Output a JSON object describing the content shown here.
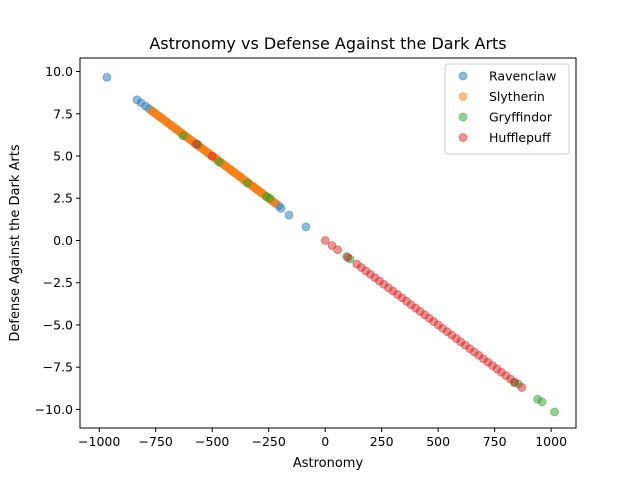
{
  "chart_data": {
    "type": "scatter",
    "title": "Astronomy vs Defense Against the Dark Arts",
    "xlabel": "Astronomy",
    "ylabel": "Defense Against the Dark Arts",
    "xlim": [
      -1085,
      1110
    ],
    "ylim": [
      -11.1,
      10.8
    ],
    "xticks": [
      -1000,
      -750,
      -500,
      -250,
      0,
      250,
      500,
      750,
      1000
    ],
    "xtick_labels": [
      "−1000",
      "−750",
      "−500",
      "−250",
      "0",
      "250",
      "500",
      "750",
      "1000"
    ],
    "yticks": [
      -10,
      -7.5,
      -5,
      -2.5,
      0,
      2.5,
      5,
      7.5,
      10
    ],
    "ytick_labels": [
      "−10.0",
      "−7.5",
      "−5.0",
      "−2.5",
      "0.0",
      "2.5",
      "5.0",
      "7.5",
      "10.0"
    ],
    "grid": false,
    "legend_position": "top-right",
    "marker_alpha": 0.5,
    "series": [
      {
        "name": "Ravenclaw",
        "color": "#1f77b4",
        "x": [
          -966,
          -833,
          -815,
          -795,
          -780,
          -765,
          -750,
          -735,
          -720,
          -700,
          -680,
          -660,
          -640,
          -620,
          -600,
          -580,
          -560,
          -540,
          -520,
          -500,
          -480,
          -460,
          -440,
          -420,
          -400,
          -380,
          -360,
          -340,
          -320,
          -300,
          -280,
          -260,
          -240,
          -220,
          -205,
          -195,
          -160,
          -85
        ],
        "y": [
          9.66,
          8.33,
          8.15,
          7.95,
          7.8,
          7.65,
          7.5,
          7.35,
          7.2,
          7.0,
          6.8,
          6.6,
          6.4,
          6.2,
          6.0,
          5.8,
          5.6,
          5.4,
          5.2,
          5.0,
          4.8,
          4.6,
          4.4,
          4.2,
          4.0,
          3.8,
          3.6,
          3.4,
          3.2,
          3.0,
          2.8,
          2.6,
          2.4,
          2.2,
          2.05,
          1.9,
          1.5,
          0.8
        ]
      },
      {
        "name": "Slytherin",
        "color": "#ff7f0e",
        "x": [
          -770,
          -762,
          -755,
          -748,
          -740,
          -733,
          -726,
          -718,
          -710,
          -703,
          -696,
          -688,
          -680,
          -673,
          -666,
          -658,
          -650,
          -643,
          -636,
          -628,
          -620,
          -613,
          -606,
          -598,
          -590,
          -583,
          -576,
          -568,
          -560,
          -553,
          -546,
          -538,
          -530,
          -523,
          -516,
          -508,
          -500,
          -493,
          -486,
          -478,
          -470,
          -463,
          -456,
          -448,
          -440,
          -433,
          -426,
          -418,
          -410,
          -403,
          -396,
          -388,
          -380,
          -373,
          -366,
          -358,
          -350,
          -343,
          -336,
          -328,
          -320,
          -313,
          -306,
          -298,
          -290,
          -283,
          -276,
          -268,
          -260,
          -253,
          -246,
          -238,
          -230,
          -222
        ],
        "y": [
          7.7,
          7.62,
          7.55,
          7.48,
          7.4,
          7.33,
          7.26,
          7.18,
          7.1,
          7.03,
          6.96,
          6.88,
          6.8,
          6.73,
          6.66,
          6.58,
          6.5,
          6.43,
          6.36,
          6.28,
          6.2,
          6.13,
          6.06,
          5.98,
          5.9,
          5.83,
          5.76,
          5.68,
          5.6,
          5.53,
          5.46,
          5.38,
          5.3,
          5.23,
          5.16,
          5.08,
          5.0,
          4.93,
          4.86,
          4.78,
          4.7,
          4.63,
          4.56,
          4.48,
          4.4,
          4.33,
          4.26,
          4.18,
          4.1,
          4.03,
          3.96,
          3.88,
          3.8,
          3.73,
          3.66,
          3.58,
          3.5,
          3.43,
          3.36,
          3.28,
          3.2,
          3.13,
          3.06,
          2.98,
          2.9,
          2.83,
          2.76,
          2.68,
          2.6,
          2.53,
          2.46,
          2.38,
          2.3,
          2.22
        ]
      },
      {
        "name": "Gryffindor",
        "color": "#2ca02c",
        "x": [
          -630,
          -565,
          -470,
          -345,
          -260,
          -245,
          95,
          110,
          835,
          855,
          940,
          960,
          1015
        ],
        "y": [
          6.2,
          5.7,
          4.65,
          3.4,
          2.6,
          2.5,
          -0.95,
          -1.1,
          -8.4,
          -8.5,
          -9.4,
          -9.55,
          -10.15
        ],
        "points_extra": []
      },
      {
        "name": "Hufflepuff",
        "color": "#d62728",
        "x": [
          0,
          30,
          55,
          100,
          140,
          160,
          180,
          200,
          220,
          240,
          260,
          280,
          300,
          320,
          340,
          360,
          380,
          400,
          420,
          440,
          460,
          480,
          500,
          520,
          540,
          560,
          580,
          600,
          620,
          640,
          660,
          680,
          700,
          720,
          740,
          760,
          780,
          800,
          820,
          840,
          870,
          -570,
          -500
        ],
        "y": [
          0.0,
          -0.3,
          -0.55,
          -1.0,
          -1.4,
          -1.6,
          -1.8,
          -2.0,
          -2.2,
          -2.4,
          -2.6,
          -2.8,
          -3.0,
          -3.2,
          -3.4,
          -3.6,
          -3.8,
          -4.0,
          -4.2,
          -4.4,
          -4.6,
          -4.8,
          -5.0,
          -5.2,
          -5.4,
          -5.6,
          -5.8,
          -6.0,
          -6.2,
          -6.4,
          -6.6,
          -6.8,
          -7.0,
          -7.2,
          -7.4,
          -7.6,
          -7.8,
          -8.0,
          -8.2,
          -8.4,
          -8.7,
          5.7,
          5.0
        ]
      }
    ]
  }
}
